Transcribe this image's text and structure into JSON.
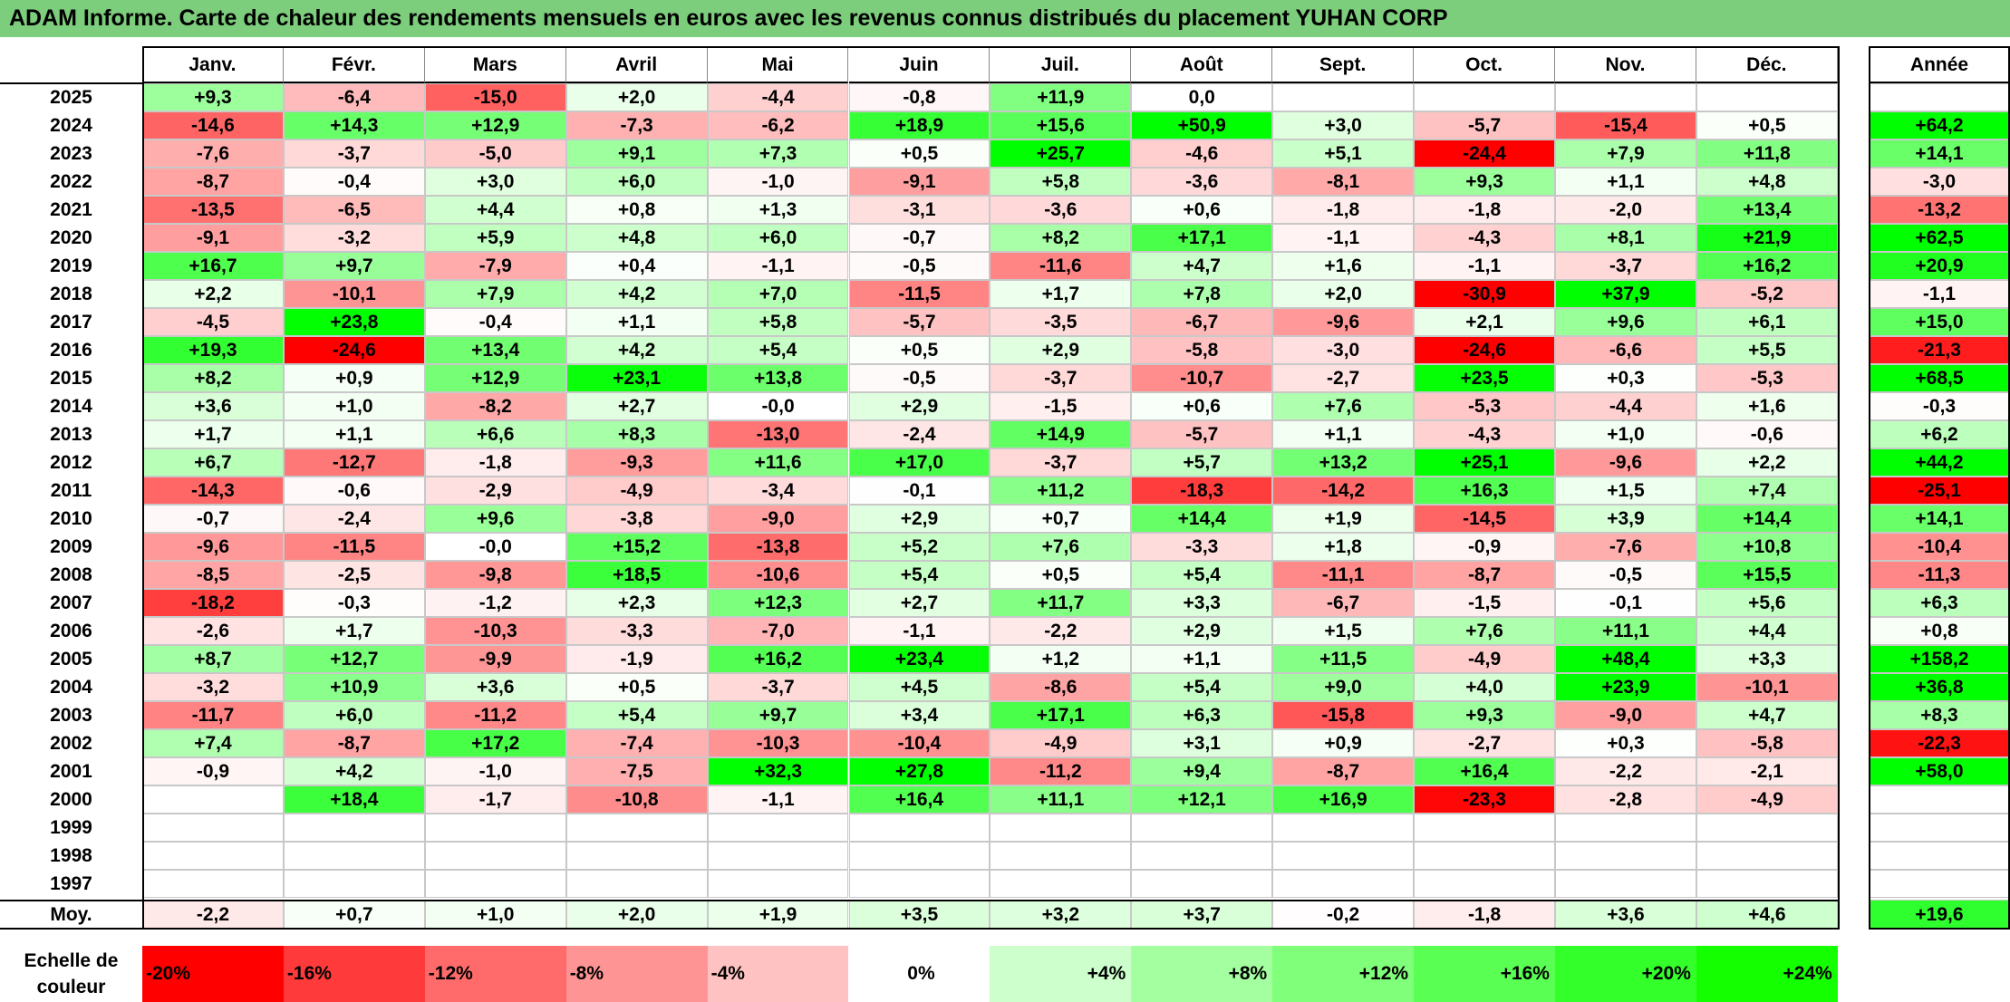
{
  "title": "ADAM Informe. Carte de chaleur des rendements mensuels en euros avec les revenus connus distribués du placement YUHAN CORP",
  "chart_data": {
    "type": "heatmap",
    "months": [
      "Janv.",
      "Févr.",
      "Mars",
      "Avril",
      "Mai",
      "Juin",
      "Juil.",
      "Août",
      "Sept.",
      "Oct.",
      "Nov.",
      "Déc."
    ],
    "year_header": "Année",
    "rows": [
      {
        "year": "2025",
        "values": [
          "+9,3",
          "-6,4",
          "-15,0",
          "+2,0",
          "-4,4",
          "-0,8",
          "+11,9",
          "0,0",
          "",
          "",
          "",
          ""
        ],
        "annual": ""
      },
      {
        "year": "2024",
        "values": [
          "-14,6",
          "+14,3",
          "+12,9",
          "-7,3",
          "-6,2",
          "+18,9",
          "+15,6",
          "+50,9",
          "+3,0",
          "-5,7",
          "-15,4",
          "+0,5"
        ],
        "annual": "+64,2"
      },
      {
        "year": "2023",
        "values": [
          "-7,6",
          "-3,7",
          "-5,0",
          "+9,1",
          "+7,3",
          "+0,5",
          "+25,7",
          "-4,6",
          "+5,1",
          "-24,4",
          "+7,9",
          "+11,8"
        ],
        "annual": "+14,1"
      },
      {
        "year": "2022",
        "values": [
          "-8,7",
          "-0,4",
          "+3,0",
          "+6,0",
          "-1,0",
          "-9,1",
          "+5,8",
          "-3,6",
          "-8,1",
          "+9,3",
          "+1,1",
          "+4,8"
        ],
        "annual": "-3,0"
      },
      {
        "year": "2021",
        "values": [
          "-13,5",
          "-6,5",
          "+4,4",
          "+0,8",
          "+1,3",
          "-3,1",
          "-3,6",
          "+0,6",
          "-1,8",
          "-1,8",
          "-2,0",
          "+13,4"
        ],
        "annual": "-13,2"
      },
      {
        "year": "2020",
        "values": [
          "-9,1",
          "-3,2",
          "+5,9",
          "+4,8",
          "+6,0",
          "-0,7",
          "+8,2",
          "+17,1",
          "-1,1",
          "-4,3",
          "+8,1",
          "+21,9"
        ],
        "annual": "+62,5"
      },
      {
        "year": "2019",
        "values": [
          "+16,7",
          "+9,7",
          "-7,9",
          "+0,4",
          "-1,1",
          "-0,5",
          "-11,6",
          "+4,7",
          "+1,6",
          "-1,1",
          "-3,7",
          "+16,2"
        ],
        "annual": "+20,9"
      },
      {
        "year": "2018",
        "values": [
          "+2,2",
          "-10,1",
          "+7,9",
          "+4,2",
          "+7,0",
          "-11,5",
          "+1,7",
          "+7,8",
          "+2,0",
          "-30,9",
          "+37,9",
          "-5,2"
        ],
        "annual": "-1,1"
      },
      {
        "year": "2017",
        "values": [
          "-4,5",
          "+23,8",
          "-0,4",
          "+1,1",
          "+5,8",
          "-5,7",
          "-3,5",
          "-6,7",
          "-9,6",
          "+2,1",
          "+9,6",
          "+6,1"
        ],
        "annual": "+15,0"
      },
      {
        "year": "2016",
        "values": [
          "+19,3",
          "-24,6",
          "+13,4",
          "+4,2",
          "+5,4",
          "+0,5",
          "+2,9",
          "-5,8",
          "-3,0",
          "-24,6",
          "-6,6",
          "+5,5"
        ],
        "annual": "-21,3"
      },
      {
        "year": "2015",
        "values": [
          "+8,2",
          "+0,9",
          "+12,9",
          "+23,1",
          "+13,8",
          "-0,5",
          "-3,7",
          "-10,7",
          "-2,7",
          "+23,5",
          "+0,3",
          "-5,3"
        ],
        "annual": "+68,5"
      },
      {
        "year": "2014",
        "values": [
          "+3,6",
          "+1,0",
          "-8,2",
          "+2,7",
          "-0,0",
          "+2,9",
          "-1,5",
          "+0,6",
          "+7,6",
          "-5,3",
          "-4,4",
          "+1,6"
        ],
        "annual": "-0,3"
      },
      {
        "year": "2013",
        "values": [
          "+1,7",
          "+1,1",
          "+6,6",
          "+8,3",
          "-13,0",
          "-2,4",
          "+14,9",
          "-5,7",
          "+1,1",
          "-4,3",
          "+1,0",
          "-0,6"
        ],
        "annual": "+6,2"
      },
      {
        "year": "2012",
        "values": [
          "+6,7",
          "-12,7",
          "-1,8",
          "-9,3",
          "+11,6",
          "+17,0",
          "-3,7",
          "+5,7",
          "+13,2",
          "+25,1",
          "-9,6",
          "+2,2"
        ],
        "annual": "+44,2"
      },
      {
        "year": "2011",
        "values": [
          "-14,3",
          "-0,6",
          "-2,9",
          "-4,9",
          "-3,4",
          "-0,1",
          "+11,2",
          "-18,3",
          "-14,2",
          "+16,3",
          "+1,5",
          "+7,4"
        ],
        "annual": "-25,1"
      },
      {
        "year": "2010",
        "values": [
          "-0,7",
          "-2,4",
          "+9,6",
          "-3,8",
          "-9,0",
          "+2,9",
          "+0,7",
          "+14,4",
          "+1,9",
          "-14,5",
          "+3,9",
          "+14,4"
        ],
        "annual": "+14,1"
      },
      {
        "year": "2009",
        "values": [
          "-9,6",
          "-11,5",
          "-0,0",
          "+15,2",
          "-13,8",
          "+5,2",
          "+7,6",
          "-3,3",
          "+1,8",
          "-0,9",
          "-7,6",
          "+10,8"
        ],
        "annual": "-10,4"
      },
      {
        "year": "2008",
        "values": [
          "-8,5",
          "-2,5",
          "-9,8",
          "+18,5",
          "-10,6",
          "+5,4",
          "+0,5",
          "+5,4",
          "-11,1",
          "-8,7",
          "-0,5",
          "+15,5"
        ],
        "annual": "-11,3"
      },
      {
        "year": "2007",
        "values": [
          "-18,2",
          "-0,3",
          "-1,2",
          "+2,3",
          "+12,3",
          "+2,7",
          "+11,7",
          "+3,3",
          "-6,7",
          "-1,5",
          "-0,1",
          "+5,6"
        ],
        "annual": "+6,3"
      },
      {
        "year": "2006",
        "values": [
          "-2,6",
          "+1,7",
          "-10,3",
          "-3,3",
          "-7,0",
          "-1,1",
          "-2,2",
          "+2,9",
          "+1,5",
          "+7,6",
          "+11,1",
          "+4,4"
        ],
        "annual": "+0,8"
      },
      {
        "year": "2005",
        "values": [
          "+8,7",
          "+12,7",
          "-9,9",
          "-1,9",
          "+16,2",
          "+23,4",
          "+1,2",
          "+1,1",
          "+11,5",
          "-4,9",
          "+48,4",
          "+3,3"
        ],
        "annual": "+158,2"
      },
      {
        "year": "2004",
        "values": [
          "-3,2",
          "+10,9",
          "+3,6",
          "+0,5",
          "-3,7",
          "+4,5",
          "-8,6",
          "+5,4",
          "+9,0",
          "+4,0",
          "+23,9",
          "-10,1"
        ],
        "annual": "+36,8"
      },
      {
        "year": "2003",
        "values": [
          "-11,7",
          "+6,0",
          "-11,2",
          "+5,4",
          "+9,7",
          "+3,4",
          "+17,1",
          "+6,3",
          "-15,8",
          "+9,3",
          "-9,0",
          "+4,7"
        ],
        "annual": "+8,3"
      },
      {
        "year": "2002",
        "values": [
          "+7,4",
          "-8,7",
          "+17,2",
          "-7,4",
          "-10,3",
          "-10,4",
          "-4,9",
          "+3,1",
          "+0,9",
          "-2,7",
          "+0,3",
          "-5,8"
        ],
        "annual": "-22,3"
      },
      {
        "year": "2001",
        "values": [
          "-0,9",
          "+4,2",
          "-1,0",
          "-7,5",
          "+32,3",
          "+27,8",
          "-11,2",
          "+9,4",
          "-8,7",
          "+16,4",
          "-2,2",
          "-2,1"
        ],
        "annual": "+58,0"
      },
      {
        "year": "2000",
        "values": [
          "",
          "+18,4",
          "-1,7",
          "-10,8",
          "-1,1",
          "+16,4",
          "+11,1",
          "+12,1",
          "+16,9",
          "-23,3",
          "-2,8",
          "-4,9"
        ],
        "annual": ""
      },
      {
        "year": "1999",
        "values": [
          "",
          "",
          "",
          "",
          "",
          "",
          "",
          "",
          "",
          "",
          "",
          ""
        ],
        "annual": ""
      },
      {
        "year": "1998",
        "values": [
          "",
          "",
          "",
          "",
          "",
          "",
          "",
          "",
          "",
          "",
          "",
          ""
        ],
        "annual": ""
      },
      {
        "year": "1997",
        "values": [
          "",
          "",
          "",
          "",
          "",
          "",
          "",
          "",
          "",
          "",
          "",
          ""
        ],
        "annual": ""
      }
    ],
    "average": {
      "label": "Moy.",
      "values": [
        "-2,2",
        "+0,7",
        "+1,0",
        "+2,0",
        "+1,9",
        "+3,5",
        "+3,2",
        "+3,7",
        "-0,2",
        "-1,8",
        "+3,6",
        "+4,6"
      ],
      "annual": "+19,6"
    },
    "color_scale": {
      "label_line1": "Echelle de",
      "label_line2": "couleur",
      "labels": [
        "-20%",
        "-16%",
        "-12%",
        "-8%",
        "-4%",
        "0%",
        "+4%",
        "+8%",
        "+12%",
        "+16%",
        "+20%",
        "+24%"
      ],
      "colors": [
        "#ff0000",
        "#ff3a3a",
        "#ff6a6a",
        "#ff9494",
        "#ffc2c2",
        "#ffffff",
        "#ccffcc",
        "#a3ff9f",
        "#80ff7a",
        "#59ff52",
        "#33ff2a",
        "#14ff00"
      ]
    },
    "colors": {
      "negative_max": "#ff0000",
      "neutral": "#ffffff",
      "positive_max": "#00ff00",
      "title_bar": "#7ccd7c"
    }
  }
}
